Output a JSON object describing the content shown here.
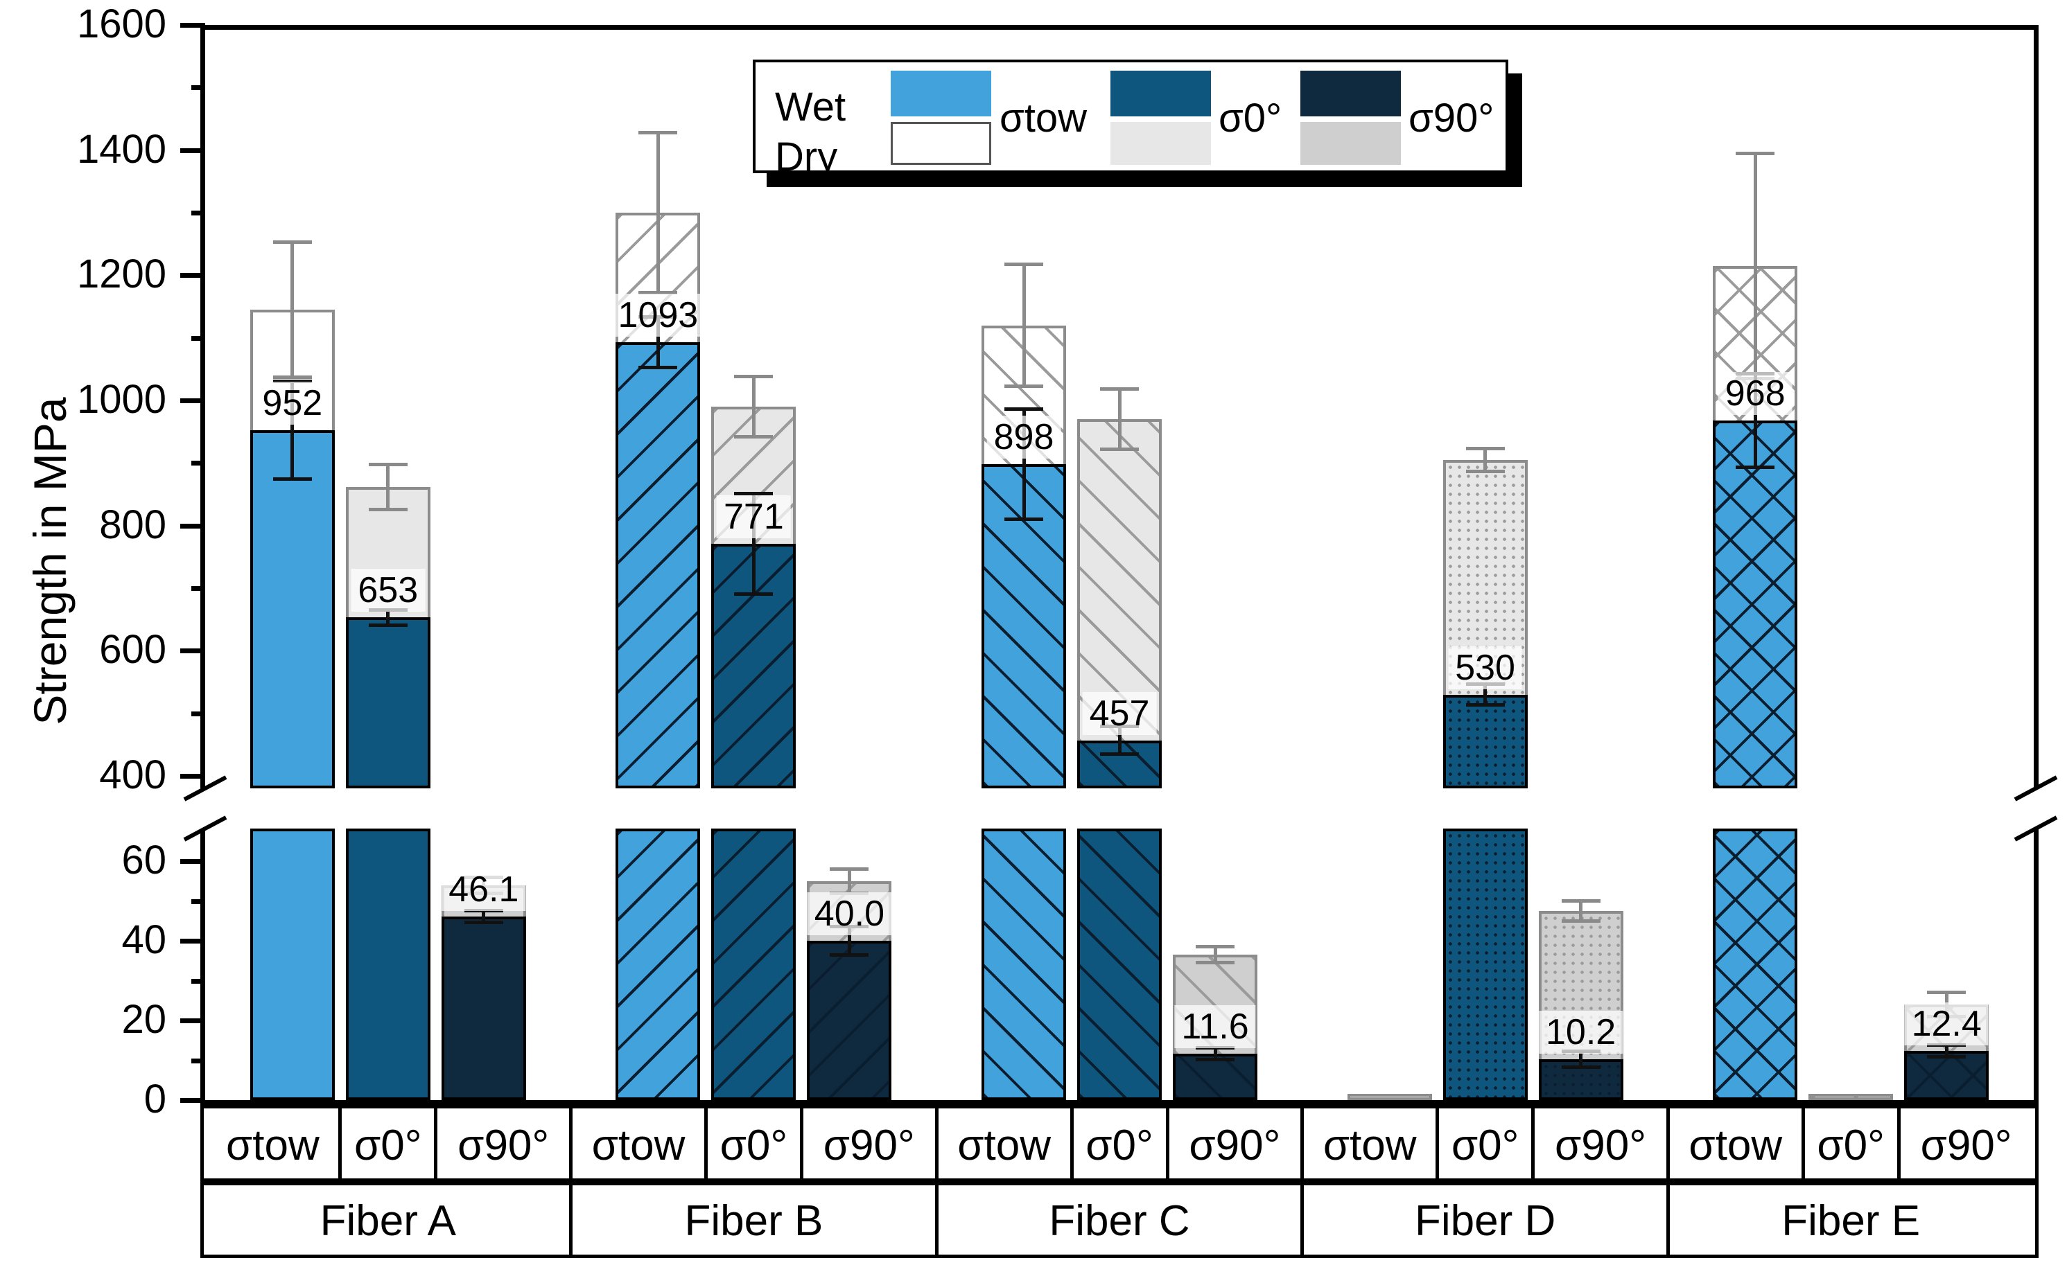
{
  "chart_data": {
    "type": "bar",
    "title": "",
    "ylabel": "Strength in MPa",
    "unit": "MPa",
    "broken_axis": {
      "upper_range": [
        400,
        1600
      ],
      "upper_major_ticks": [
        1600,
        1400,
        1200,
        1000,
        800,
        600,
        400
      ],
      "upper_minor_ticks": [
        1500,
        1300,
        1100,
        900,
        700,
        500
      ],
      "lower_range": [
        0,
        68
      ],
      "lower_major_ticks": [
        60,
        40,
        20,
        0
      ],
      "lower_minor_ticks": [
        50,
        30,
        10
      ]
    },
    "legend": {
      "row_labels": [
        "Wet",
        "Dry"
      ],
      "col_labels": [
        "σtow",
        "σ0°",
        "σ90°"
      ]
    },
    "categories": [
      "σtow",
      "σ0°",
      "σ90°"
    ],
    "colors": {
      "wet": [
        "#42A2DC",
        "#0E567E",
        "#0F2A3F"
      ],
      "dry": [
        "#FFFFFF",
        "#E7E7E7",
        "#CFCFCF"
      ],
      "wet_hatch": "#0a1e30",
      "dry_hatch": "#9b9b9b",
      "wet_err": "#111111",
      "dry_err": "#8a8a8a"
    },
    "fibers": [
      {
        "name": "Fiber A",
        "hatch": "none",
        "bars": [
          {
            "category": "σtow",
            "wet": 952,
            "wet_label": "952",
            "wet_err": 78,
            "dry": 1145,
            "dry_err": 108
          },
          {
            "category": "σ0°",
            "wet": 653,
            "wet_label": "653",
            "wet_err": 12,
            "dry": 862,
            "dry_err": 36
          },
          {
            "category": "σ90°",
            "wet": 46.1,
            "wet_label": "46.1",
            "wet_err": 1.5,
            "dry": 54,
            "dry_err": 2
          }
        ]
      },
      {
        "name": "Fiber B",
        "hatch": "fwd",
        "bars": [
          {
            "category": "σtow",
            "wet": 1093,
            "wet_label": "1093",
            "wet_err": 40,
            "dry": 1300,
            "dry_err": 128
          },
          {
            "category": "σ0°",
            "wet": 771,
            "wet_label": "771",
            "wet_err": 80,
            "dry": 990,
            "dry_err": 48
          },
          {
            "category": "σ90°",
            "wet": 40.0,
            "wet_label": "40.0",
            "wet_err": 3.5,
            "dry": 55,
            "dry_err": 3
          }
        ]
      },
      {
        "name": "Fiber C",
        "hatch": "bwd",
        "bars": [
          {
            "category": "σtow",
            "wet": 898,
            "wet_label": "898",
            "wet_err": 88,
            "dry": 1120,
            "dry_err": 97
          },
          {
            "category": "σ0°",
            "wet": 457,
            "wet_label": "457",
            "wet_err": 22,
            "dry": 970,
            "dry_err": 48
          },
          {
            "category": "σ90°",
            "wet": 11.6,
            "wet_label": "11.6",
            "wet_err": 1.5,
            "dry": 36.5,
            "dry_err": 2
          }
        ]
      },
      {
        "name": "Fiber D",
        "hatch": "dot",
        "bars": [
          {
            "category": "σtow",
            "wet": null,
            "wet_label": null,
            "wet_err": null,
            "dry": 1.5,
            "dry_err": null
          },
          {
            "category": "σ0°",
            "wet": 530,
            "wet_label": "530",
            "wet_err": 17,
            "dry": 905,
            "dry_err": 18
          },
          {
            "category": "σ90°",
            "wet": 10.2,
            "wet_label": "10.2",
            "wet_err": 2,
            "dry": 47.5,
            "dry_err": 2.5
          }
        ]
      },
      {
        "name": "Fiber E",
        "hatch": "cross",
        "bars": [
          {
            "category": "σtow",
            "wet": 968,
            "wet_label": "968",
            "wet_err": 75,
            "dry": 1215,
            "dry_err": 180
          },
          {
            "category": "σ0°",
            "wet": null,
            "wet_label": null,
            "wet_err": null,
            "dry": 1.5,
            "dry_err": null
          },
          {
            "category": "σ90°",
            "wet": 12.4,
            "wet_label": "12.4",
            "wet_err": 1.5,
            "dry": 24,
            "dry_err": 3
          }
        ]
      }
    ]
  }
}
